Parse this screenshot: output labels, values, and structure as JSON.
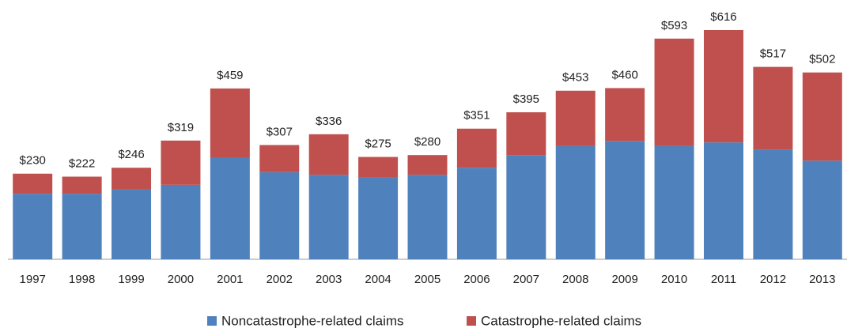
{
  "chart_data": {
    "type": "stacked-bar",
    "categories": [
      "1997",
      "1998",
      "1999",
      "2000",
      "2001",
      "2002",
      "2003",
      "2004",
      "2005",
      "2006",
      "2007",
      "2008",
      "2009",
      "2010",
      "2011",
      "2012",
      "2013"
    ],
    "series": [
      {
        "name": "Noncatastrophe-related claims",
        "color": "#4f81bd",
        "values": [
          176,
          176,
          189,
          200,
          274,
          234,
          227,
          219,
          227,
          246,
          280,
          304,
          318,
          304,
          314,
          295,
          265
        ]
      },
      {
        "name": "Catastrophe-related claims",
        "color": "#c0504d",
        "values": [
          54,
          46,
          57,
          119,
          185,
          73,
          109,
          56,
          53,
          105,
          115,
          149,
          142,
          289,
          302,
          222,
          237
        ]
      }
    ],
    "totals": [
      230,
      222,
      246,
      319,
      459,
      307,
      336,
      275,
      280,
      351,
      395,
      453,
      460,
      593,
      616,
      517,
      502
    ],
    "total_labels": [
      "$230",
      "$222",
      "$246",
      "$319",
      "$459",
      "$307",
      "$336",
      "$275",
      "$280",
      "$351",
      "$395",
      "$453",
      "$460",
      "$593",
      "$616",
      "$517",
      "$502"
    ],
    "ylim": [
      0,
      650
    ]
  }
}
